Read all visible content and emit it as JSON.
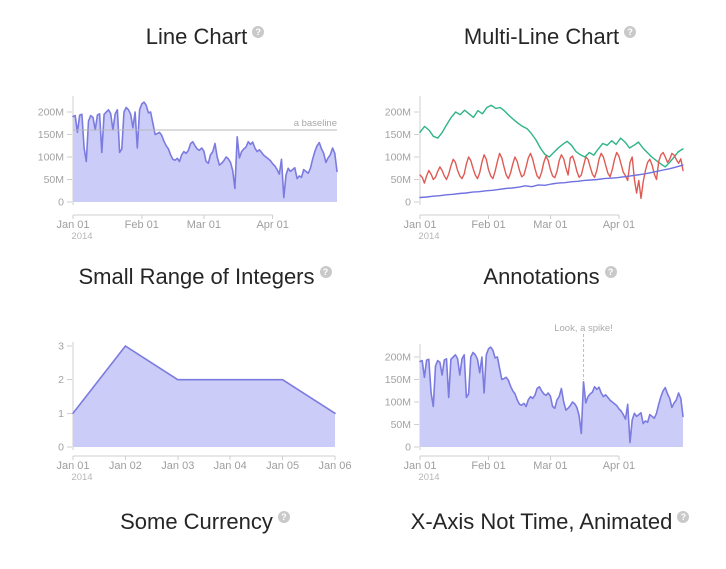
{
  "chart_data": [
    {
      "id": "line-chart",
      "type": "area",
      "title": "Line Chart",
      "help": "?",
      "x_axis": {
        "xlim": [
          0,
          119
        ],
        "ticks": [
          {
            "label": "Jan 01",
            "year": "2014",
            "pos": 0
          },
          {
            "label": "Feb 01",
            "pos": 31
          },
          {
            "label": "Mar 01",
            "pos": 59
          },
          {
            "label": "Apr 01",
            "pos": 90
          }
        ]
      },
      "y_axis": {
        "unit": "M",
        "ylim": [
          0,
          230
        ],
        "ticks": [
          {
            "label": "200M",
            "value": 200
          },
          {
            "label": "150M",
            "value": 150
          },
          {
            "label": "100M",
            "value": 100
          },
          {
            "label": "50M",
            "value": 50
          },
          {
            "label": "0",
            "value": 0
          }
        ]
      },
      "baseline": {
        "value": 160,
        "label": "a baseline"
      },
      "series": [
        {
          "name": "value",
          "color": "#7b7be0",
          "fill": "#cbccf8",
          "values": [
            190,
            192,
            155,
            193,
            195,
            120,
            90,
            180,
            192,
            188,
            160,
            193,
            196,
            110,
            195,
            200,
            205,
            196,
            160,
            196,
            205,
            110,
            118,
            200,
            210,
            205,
            195,
            165,
            200,
            120,
            205,
            218,
            222,
            215,
            198,
            200,
            175,
            150,
            152,
            155,
            148,
            135,
            125,
            118,
            105,
            95,
            93,
            97,
            90,
            105,
            112,
            108,
            115,
            130,
            134,
            125,
            118,
            115,
            120,
            113,
            90,
            86,
            105,
            112,
            130,
            100,
            82,
            86,
            92,
            100,
            96,
            88,
            70,
            30,
            145,
            98,
            112,
            118,
            122,
            134,
            128,
            133,
            120,
            112,
            116,
            110,
            104,
            100,
            96,
            92,
            85,
            80,
            72,
            62,
            95,
            10,
            60,
            75,
            68,
            72,
            76,
            52,
            58,
            55,
            72,
            68,
            64,
            75,
            95,
            112,
            125,
            132,
            118,
            108,
            88,
            98,
            105,
            120,
            108,
            68
          ]
        }
      ]
    },
    {
      "id": "multi-line",
      "type": "line",
      "title": "Multi-Line Chart",
      "help": "?",
      "x_axis": {
        "xlim": [
          0,
          119
        ],
        "ticks": [
          {
            "label": "Jan 01",
            "year": "2014",
            "pos": 0
          },
          {
            "label": "Feb 01",
            "pos": 31
          },
          {
            "label": "Mar 01",
            "pos": 59
          },
          {
            "label": "Apr 01",
            "pos": 90
          }
        ]
      },
      "y_axis": {
        "unit": "M",
        "ylim": [
          0,
          230
        ],
        "ticks": [
          {
            "label": "200M",
            "value": 200
          },
          {
            "label": "150M",
            "value": 150
          },
          {
            "label": "100M",
            "value": 100
          },
          {
            "label": "50M",
            "value": 50
          },
          {
            "label": "0",
            "value": 0
          }
        ]
      },
      "series": [
        {
          "name": "line-2-green",
          "color": "#2eb487",
          "values": [
            155,
            168,
            160,
            146,
            142,
            155,
            172,
            188,
            200,
            194,
            204,
            196,
            188,
            203,
            196,
            210,
            215,
            208,
            210,
            202,
            192,
            183,
            175,
            168,
            163,
            152,
            138,
            120,
            106,
            100,
            110,
            120,
            128,
            135,
            126,
            112,
            105,
            100,
            110,
            104,
            118,
            130,
            126,
            136,
            128,
            142,
            133,
            120,
            126,
            133,
            120,
            110,
            100,
            92,
            85,
            78,
            88,
            100,
            112,
            118
          ]
        },
        {
          "name": "line-3-red",
          "color": "#e05a54",
          "values": [
            60,
            55,
            42,
            58,
            70,
            62,
            50,
            55,
            68,
            78,
            70,
            58,
            50,
            62,
            80,
            95,
            88,
            70,
            58,
            52,
            62,
            85,
            100,
            92,
            75,
            60,
            52,
            65,
            88,
            105,
            95,
            72,
            58,
            52,
            68,
            90,
            108,
            98,
            78,
            60,
            52,
            65,
            85,
            100,
            90,
            70,
            56,
            60,
            78,
            98,
            108,
            95,
            75,
            58,
            52,
            66,
            88,
            102,
            92,
            72,
            58,
            54,
            68,
            92,
            105,
            96,
            76,
            60,
            98,
            102,
            88,
            68,
            55,
            60,
            80,
            100,
            95,
            78,
            62,
            55,
            70,
            95,
            108,
            100,
            82,
            64,
            56,
            72,
            95,
            110,
            102,
            84,
            66,
            58,
            48,
            88,
            100,
            50,
            20,
            48,
            8,
            45,
            70,
            88,
            95,
            82,
            62,
            50,
            90,
            105,
            110,
            100,
            88,
            95,
            108,
            104,
            94,
            86,
            96,
            70
          ]
        },
        {
          "name": "line-1-blue",
          "color": "#6f71e0",
          "values": [
            10,
            11,
            13,
            14,
            16,
            17,
            19,
            20,
            22,
            23,
            25,
            26,
            28,
            30,
            31,
            33,
            36,
            34,
            38,
            37,
            40,
            42,
            43,
            45,
            46,
            48,
            49,
            50,
            52,
            53,
            54,
            56,
            58,
            60,
            62,
            65,
            68,
            71,
            74,
            78,
            82
          ]
        }
      ]
    },
    {
      "id": "integers",
      "type": "area",
      "title": "Small Range of Integers",
      "help": "?",
      "x_axis": {
        "xlim": [
          0,
          5
        ],
        "ticks": [
          {
            "label": "Jan 01",
            "year": "2014",
            "pos": 0
          },
          {
            "label": "Jan 02",
            "pos": 1
          },
          {
            "label": "Jan 03",
            "pos": 2
          },
          {
            "label": "Jan 04",
            "pos": 3
          },
          {
            "label": "Jan 05",
            "pos": 4
          },
          {
            "label": "Jan 06",
            "pos": 5
          }
        ]
      },
      "y_axis": {
        "unit": "",
        "ylim": [
          0,
          3
        ],
        "ticks": [
          {
            "label": "3",
            "value": 3
          },
          {
            "label": "2",
            "value": 2
          },
          {
            "label": "1",
            "value": 1
          },
          {
            "label": "0",
            "value": 0
          }
        ]
      },
      "series": [
        {
          "name": "value",
          "color": "#7b7be0",
          "fill": "#cbccf8",
          "values": [
            1,
            3,
            2,
            2,
            2,
            1
          ]
        }
      ]
    },
    {
      "id": "annotations",
      "type": "area",
      "title": "Annotations",
      "help": "?",
      "x_axis": {
        "xlim": [
          0,
          119
        ],
        "ticks": [
          {
            "label": "Jan 01",
            "year": "2014",
            "pos": 0
          },
          {
            "label": "Feb 01",
            "pos": 31
          },
          {
            "label": "Mar 01",
            "pos": 59
          },
          {
            "label": "Apr 01",
            "pos": 90
          }
        ]
      },
      "y_axis": {
        "unit": "M",
        "ylim": [
          0,
          230
        ],
        "ticks": [
          {
            "label": "200M",
            "value": 200
          },
          {
            "label": "150M",
            "value": 150
          },
          {
            "label": "100M",
            "value": 100
          },
          {
            "label": "50M",
            "value": 50
          },
          {
            "label": "0",
            "value": 0
          }
        ]
      },
      "annotation": {
        "pos": 74,
        "label": "Look, a spike!"
      },
      "series": [
        {
          "name": "value",
          "color": "#7b7be0",
          "fill": "#cbccf8",
          "values": [
            190,
            192,
            155,
            193,
            195,
            120,
            90,
            180,
            192,
            188,
            160,
            193,
            196,
            110,
            195,
            200,
            205,
            196,
            160,
            196,
            205,
            110,
            118,
            200,
            210,
            205,
            195,
            165,
            200,
            120,
            205,
            218,
            222,
            215,
            198,
            200,
            175,
            150,
            152,
            155,
            148,
            135,
            125,
            118,
            105,
            95,
            93,
            97,
            90,
            105,
            112,
            108,
            115,
            130,
            134,
            125,
            118,
            115,
            120,
            113,
            90,
            86,
            105,
            112,
            130,
            100,
            82,
            86,
            92,
            100,
            96,
            88,
            70,
            30,
            145,
            98,
            112,
            118,
            122,
            134,
            128,
            133,
            120,
            112,
            116,
            110,
            104,
            100,
            96,
            92,
            85,
            80,
            72,
            62,
            95,
            10,
            60,
            75,
            68,
            72,
            76,
            52,
            58,
            55,
            72,
            68,
            64,
            75,
            95,
            112,
            125,
            132,
            118,
            108,
            88,
            98,
            105,
            120,
            108,
            68
          ]
        }
      ]
    }
  ],
  "pending_charts": [
    {
      "title": "Some Currency",
      "help": "?"
    },
    {
      "title": "X-Axis Not Time, Animated",
      "help": "?"
    }
  ]
}
